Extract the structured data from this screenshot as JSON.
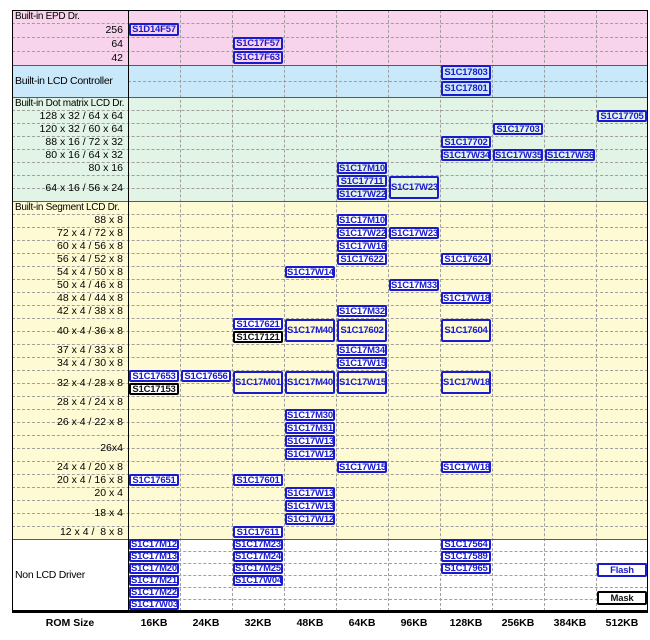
{
  "chart_data": {
    "type": "table",
    "xlabel": "ROM Size",
    "columns": [
      "16KB",
      "24KB",
      "32KB",
      "48KB",
      "64KB",
      "96KB",
      "128KB",
      "256KB",
      "384KB",
      "512KB"
    ],
    "legend": [
      {
        "label": "Flash",
        "style": "flash"
      },
      {
        "label": "Mask",
        "style": "mask"
      }
    ],
    "colors": {
      "flash_blue": "#1b1bce",
      "mask_black": "#000000",
      "grid_dash": "#9f9f9f",
      "section_line": "#5a5a5a",
      "border": "#000000",
      "epd_pink": "#f8d3ec",
      "lcd_blue": "#c9e8fa",
      "dot_green": "#e2f4e6",
      "segment_yellow": "#fefbd4",
      "non_lcd_white": "#ffffff"
    },
    "sections": [
      {
        "label": "Built-in EPD Dr.",
        "bg": "#f8d3ec",
        "rows": [
          {
            "label": "256",
            "cells": [
              {
                "col": "16KB",
                "chips": [
                  {
                    "name": "S1D14F57"
                  }
                ]
              }
            ]
          },
          {
            "label": "64",
            "cells": [
              {
                "col": "32KB",
                "chips": [
                  {
                    "name": "S1C17F57"
                  }
                ]
              }
            ]
          },
          {
            "label": "42",
            "cells": [
              {
                "col": "32KB",
                "chips": [
                  {
                    "name": "S1C17F63"
                  }
                ]
              }
            ]
          }
        ]
      },
      {
        "label": "Built-in LCD Controller",
        "bg": "#c9e8fa",
        "own_row": true,
        "rows": [
          {
            "label": "",
            "slots": 2,
            "cells": [
              {
                "col": "128KB",
                "chips": [
                  {
                    "name": "S1C17803"
                  },
                  {
                    "name": "S1C17801"
                  }
                ]
              }
            ]
          }
        ]
      },
      {
        "label": "Built-in Dot matrix LCD Dr.",
        "bg": "#e2f4e6",
        "rows": [
          {
            "label": "128 x 32 / 64 x 64",
            "cells": [
              {
                "col": "512KB",
                "chips": [
                  {
                    "name": "S1C17705"
                  }
                ]
              }
            ]
          },
          {
            "label": "120 x 32 / 60 x 64",
            "cells": [
              {
                "col": "256KB",
                "chips": [
                  {
                    "name": "S1C17703"
                  }
                ]
              }
            ]
          },
          {
            "label": "88 x 16 / 72 x 32",
            "cells": [
              {
                "col": "128KB",
                "chips": [
                  {
                    "name": "S1C17702"
                  }
                ]
              }
            ]
          },
          {
            "label": "80 x 16 / 64 x 32",
            "cells": [
              {
                "col": "128KB",
                "chips": [
                  {
                    "name": "S1C17W34"
                  }
                ]
              },
              {
                "col": "256KB",
                "chips": [
                  {
                    "name": "S1C17W35"
                  }
                ]
              },
              {
                "col": "384KB",
                "chips": [
                  {
                    "name": "S1C17W36"
                  }
                ]
              }
            ]
          },
          {
            "label": "80 x 16",
            "cells": [
              {
                "col": "64KB",
                "chips": [
                  {
                    "name": "S1C17M10"
                  }
                ]
              }
            ]
          },
          {
            "label": "64 x 16 / 56 x 24",
            "slots": 2,
            "cells": [
              {
                "col": "64KB",
                "chips": [
                  {
                    "name": "S1C17711"
                  },
                  {
                    "name": "S1C17W22"
                  }
                ]
              },
              {
                "col": "96KB",
                "chips": [
                  {
                    "name": "S1C17W23",
                    "tall": true
                  }
                ]
              }
            ]
          }
        ]
      },
      {
        "label": "Built-in Segment LCD Dr.",
        "bg": "#fefbd4",
        "chip_fill": "#ffffff",
        "rows": [
          {
            "label": "88 x 8",
            "cells": [
              {
                "col": "64KB",
                "chips": [
                  {
                    "name": "S1C17M10"
                  }
                ]
              }
            ]
          },
          {
            "label": "72 x 4 / 72 x 8",
            "cells": [
              {
                "col": "64KB",
                "chips": [
                  {
                    "name": "S1C17W22"
                  }
                ]
              },
              {
                "col": "96KB",
                "chips": [
                  {
                    "name": "S1C17W23"
                  }
                ]
              }
            ]
          },
          {
            "label": "60 x 4 / 56 x 8",
            "cells": [
              {
                "col": "64KB",
                "chips": [
                  {
                    "name": "S1C17W16"
                  }
                ]
              }
            ]
          },
          {
            "label": "56 x 4 / 52 x 8",
            "cells": [
              {
                "col": "64KB",
                "chips": [
                  {
                    "name": "S1C17622"
                  }
                ]
              },
              {
                "col": "128KB",
                "chips": [
                  {
                    "name": "S1C17624"
                  }
                ]
              }
            ]
          },
          {
            "label": "54 x 4 / 50 x 8",
            "cells": [
              {
                "col": "48KB",
                "chips": [
                  {
                    "name": "S1C17W14"
                  }
                ]
              }
            ]
          },
          {
            "label": "50 x 4 / 46 x 8",
            "cells": [
              {
                "col": "96KB",
                "chips": [
                  {
                    "name": "S1C17M33"
                  }
                ]
              }
            ]
          },
          {
            "label": "48 x 4 / 44 x 8",
            "cells": [
              {
                "col": "128KB",
                "chips": [
                  {
                    "name": "S1C17W18"
                  }
                ]
              }
            ]
          },
          {
            "label": "42 x 4 / 38 x 8",
            "cells": [
              {
                "col": "64KB",
                "chips": [
                  {
                    "name": "S1C17M32"
                  }
                ]
              }
            ]
          },
          {
            "label": "40 x 4 / 36 x 8",
            "slots": 2,
            "cells": [
              {
                "col": "32KB",
                "chips": [
                  {
                    "name": "S1C17621"
                  },
                  {
                    "name": "S1C17121",
                    "style": "mask"
                  }
                ]
              },
              {
                "col": "48KB",
                "chips": [
                  {
                    "name": "S1C17M40",
                    "tall": true
                  }
                ]
              },
              {
                "col": "64KB",
                "chips": [
                  {
                    "name": "S1C17602",
                    "tall": true
                  }
                ]
              },
              {
                "col": "128KB",
                "chips": [
                  {
                    "name": "S1C17604",
                    "tall": true
                  }
                ]
              }
            ]
          },
          {
            "label": "37 x 4 / 33 x 8",
            "cells": [
              {
                "col": "64KB",
                "chips": [
                  {
                    "name": "S1C17M34"
                  }
                ]
              }
            ]
          },
          {
            "label": "34 x 4 / 30 x 8",
            "cells": [
              {
                "col": "64KB",
                "chips": [
                  {
                    "name": "S1C17W15"
                  }
                ]
              }
            ]
          },
          {
            "label": "32 x 4 / 28 x 8",
            "slots": 2,
            "cells": [
              {
                "col": "16KB",
                "chips": [
                  {
                    "name": "S1C17653"
                  },
                  {
                    "name": "S1C17153",
                    "style": "mask"
                  }
                ]
              },
              {
                "col": "24KB",
                "chips": [
                  {
                    "name": "S1C17656",
                    "top": true
                  }
                ]
              },
              {
                "col": "32KB",
                "chips": [
                  {
                    "name": "S1C17M01",
                    "tall": true
                  }
                ]
              },
              {
                "col": "48KB",
                "chips": [
                  {
                    "name": "S1C17M40",
                    "tall": true
                  }
                ]
              },
              {
                "col": "64KB",
                "chips": [
                  {
                    "name": "S1C17W15",
                    "tall": true
                  }
                ]
              },
              {
                "col": "128KB",
                "chips": [
                  {
                    "name": "S1C17W18",
                    "tall": true
                  }
                ]
              }
            ]
          },
          {
            "label": "28 x 4 / 24 x 8",
            "cells": []
          },
          {
            "label": "26 x 4 / 22 x 8",
            "slots": 2,
            "cells": [
              {
                "col": "48KB",
                "chips": [
                  {
                    "name": "S1C17M30"
                  },
                  {
                    "name": "S1C17M31"
                  }
                ]
              }
            ]
          },
          {
            "label": "26x4",
            "slots": 2,
            "cells": [
              {
                "col": "48KB",
                "chips": [
                  {
                    "name": "S1C17W13"
                  },
                  {
                    "name": "S1C17W12"
                  }
                ]
              }
            ]
          },
          {
            "label": "24 x 4 / 20 x 8",
            "cells": [
              {
                "col": "64KB",
                "chips": [
                  {
                    "name": "S1C17W15"
                  }
                ]
              },
              {
                "col": "128KB",
                "chips": [
                  {
                    "name": "S1C17W18"
                  }
                ]
              }
            ]
          },
          {
            "label": "20 x 4 / 16 x 8",
            "cells": [
              {
                "col": "16KB",
                "chips": [
                  {
                    "name": "S1C17651"
                  }
                ]
              },
              {
                "col": "32KB",
                "chips": [
                  {
                    "name": "S1C17601"
                  }
                ]
              }
            ]
          },
          {
            "label": "20 x 4",
            "cells": [
              {
                "col": "48KB",
                "chips": [
                  {
                    "name": "S1C17W13"
                  }
                ]
              }
            ]
          },
          {
            "label": "18 x 4",
            "slots": 2,
            "cells": [
              {
                "col": "48KB",
                "chips": [
                  {
                    "name": "S1C17W13"
                  },
                  {
                    "name": "S1C17W12"
                  }
                ]
              }
            ]
          },
          {
            "label": "12 x 4 /  8 x 8",
            "cells": [
              {
                "col": "32KB",
                "chips": [
                  {
                    "name": "S1C17611"
                  }
                ]
              }
            ]
          }
        ]
      },
      {
        "label": "Non LCD Driver",
        "bg": "#ffffff",
        "chip_fill": "#ffffff",
        "own_row": true,
        "rows": [
          {
            "label": "",
            "slots": 6,
            "cells": [
              {
                "col": "16KB",
                "chips": [
                  {
                    "name": "S1C17M12"
                  },
                  {
                    "name": "S1C17M13"
                  },
                  {
                    "name": "S1C17M20"
                  },
                  {
                    "name": "S1C17M21"
                  },
                  {
                    "name": "S1C17M22"
                  },
                  {
                    "name": "S1C17W03"
                  }
                ]
              },
              {
                "col": "32KB",
                "chips": [
                  {
                    "name": "S1C17M23"
                  },
                  {
                    "name": "S1C17M24"
                  },
                  {
                    "name": "S1C17M25"
                  },
                  {
                    "name": "S1C17W04"
                  }
                ]
              },
              {
                "col": "128KB",
                "chips": [
                  {
                    "name": "S1C17564"
                  },
                  {
                    "name": "S1C17589"
                  },
                  {
                    "name": "S1C17965"
                  }
                ]
              }
            ]
          }
        ]
      }
    ]
  }
}
